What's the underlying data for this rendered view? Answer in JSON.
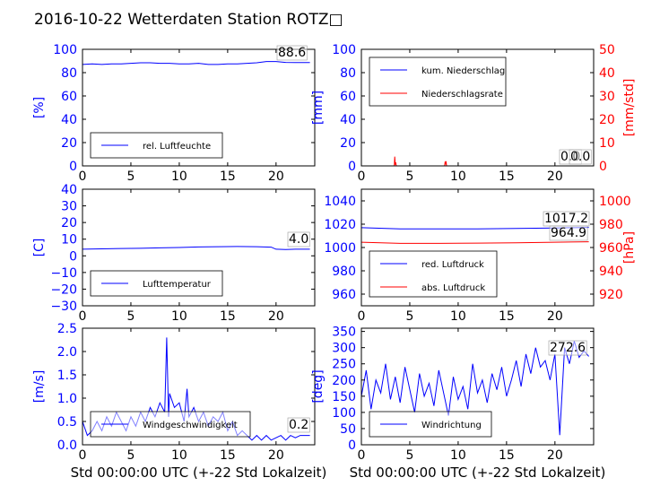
{
  "title": "2016-10-22 Wetterdaten Station ROTZ□",
  "colors": {
    "blue": "#0000ff",
    "red": "#ff0000",
    "black": "#000000"
  },
  "chart_data": [
    {
      "type": "line",
      "id": "humidity",
      "ylabel": "[%]",
      "xlabel": "",
      "xlim": [
        0,
        24
      ],
      "ylim": [
        0,
        100
      ],
      "xticks": [
        0,
        5,
        10,
        15,
        20
      ],
      "yticks": [
        0,
        20,
        40,
        60,
        80,
        100
      ],
      "legend": "lower-left",
      "series": [
        {
          "name": "rel. Luftfeuchte",
          "color": "#0000ff",
          "x": [
            0,
            1,
            2,
            3,
            4,
            5,
            6,
            7,
            8,
            9,
            10,
            11,
            12,
            13,
            14,
            15,
            16,
            17,
            18,
            19,
            20,
            21,
            22,
            23.5
          ],
          "y": [
            87,
            87.5,
            87,
            87.5,
            87.5,
            88,
            88.5,
            88.5,
            88,
            88,
            87.5,
            87.5,
            88,
            87,
            87,
            87.5,
            87.5,
            88,
            88.5,
            89.5,
            89.5,
            88.8,
            88.6,
            88.6
          ]
        }
      ],
      "annotations": [
        {
          "text": "88.6"
        }
      ]
    },
    {
      "type": "line",
      "id": "precipitation",
      "ylabel": "[mm]",
      "ylabel_right": "[mm/std]",
      "xlabel": "",
      "xlim": [
        0,
        24
      ],
      "ylim": [
        0,
        100
      ],
      "ylim_right": [
        0,
        50
      ],
      "xticks": [
        0,
        5,
        10,
        15,
        20
      ],
      "yticks": [
        0,
        20,
        40,
        60,
        80,
        100
      ],
      "yticks_right": [
        0,
        10,
        20,
        30,
        40,
        50
      ],
      "legend": "upper-left",
      "series": [
        {
          "name": "kum. Niederschlag",
          "color": "#0000ff",
          "axis": "left",
          "x": [
            0,
            24
          ],
          "y": [
            0,
            0
          ]
        },
        {
          "name": "Niederschlagsrate",
          "color": "#ff0000",
          "axis": "right",
          "x": [
            0,
            3.4,
            3.45,
            3.5,
            3.55,
            3.6,
            8.6,
            8.65,
            8.7,
            8.75,
            8.8,
            24
          ],
          "y": [
            0,
            0,
            4,
            0.5,
            1.5,
            0,
            0,
            1.5,
            1,
            2,
            0,
            0
          ]
        }
      ],
      "annotations": [
        {
          "text": "0.0"
        },
        {
          "text": "0.0"
        }
      ]
    },
    {
      "type": "line",
      "id": "temperature",
      "ylabel": "[C]",
      "xlabel": "",
      "xlim": [
        0,
        24
      ],
      "ylim": [
        -30,
        40
      ],
      "xticks": [
        0,
        5,
        10,
        15,
        20
      ],
      "yticks": [
        -30,
        -20,
        -10,
        0,
        10,
        20,
        30,
        40
      ],
      "legend": "lower-left",
      "series": [
        {
          "name": "Lufttemperatur",
          "color": "#0000ff",
          "x": [
            0,
            2,
            4,
            6,
            8,
            10,
            12,
            14,
            16,
            18,
            19.5,
            20,
            21,
            22,
            23.5
          ],
          "y": [
            4,
            4.2,
            4.4,
            4.5,
            4.8,
            5,
            5.3,
            5.5,
            5.6,
            5.5,
            5.2,
            4,
            3.8,
            4,
            4.0
          ]
        }
      ],
      "annotations": [
        {
          "text": "4.0"
        }
      ]
    },
    {
      "type": "line",
      "id": "pressure",
      "ylabel": "",
      "ylabel_right": "[hPa]",
      "xlabel": "",
      "xlim": [
        0,
        24
      ],
      "ylim": [
        950,
        1050
      ],
      "ylim_right": [
        910,
        1010
      ],
      "xticks": [
        0,
        5,
        10,
        15,
        20
      ],
      "yticks": [
        960,
        980,
        1000,
        1020,
        1040
      ],
      "yticks_right": [
        920,
        940,
        960,
        980,
        1000
      ],
      "legend": "lower-left",
      "series": [
        {
          "name": "red. Luftdruck",
          "color": "#0000ff",
          "axis": "left",
          "x": [
            0,
            4,
            8,
            12,
            16,
            20,
            23.5
          ],
          "y": [
            1017,
            1016,
            1016,
            1016,
            1016.3,
            1016.8,
            1017.2
          ]
        },
        {
          "name": "abs. Luftdruck",
          "color": "#ff0000",
          "axis": "right",
          "x": [
            0,
            4,
            8,
            12,
            16,
            20,
            23.5
          ],
          "y": [
            964.5,
            963.5,
            963.5,
            963.8,
            964,
            964.5,
            964.9
          ]
        }
      ],
      "annotations": [
        {
          "text": "1017.2"
        },
        {
          "text": "964.9"
        }
      ]
    },
    {
      "type": "line",
      "id": "windspeed",
      "ylabel": "[m/s]",
      "xlabel": "Std 00:00:00 UTC (+-22 Std Lokalzeit)",
      "xlim": [
        0,
        24
      ],
      "ylim": [
        0,
        2.5
      ],
      "xticks": [
        0,
        5,
        10,
        15,
        20
      ],
      "yticks": [
        0,
        0.5,
        1.0,
        1.5,
        2.0,
        2.5
      ],
      "legend": "lower-left",
      "series": [
        {
          "name": "Windgeschwindigkeit",
          "color": "#0000ff",
          "x": [
            0,
            0.5,
            1,
            1.5,
            2,
            2.5,
            3,
            3.5,
            4,
            4.5,
            5,
            5.5,
            6,
            6.5,
            7,
            7.5,
            8,
            8.5,
            8.7,
            8.9,
            9,
            9.5,
            10,
            10.5,
            10.8,
            11,
            11.5,
            12,
            12.5,
            13,
            13.5,
            14,
            14.5,
            15,
            15.5,
            16,
            16.5,
            17,
            17.5,
            18,
            18.5,
            19,
            19.5,
            20,
            20.5,
            21,
            21.5,
            22,
            22.5,
            23,
            23.5
          ],
          "y": [
            0.5,
            0.2,
            0.3,
            0.5,
            0.3,
            0.6,
            0.4,
            0.7,
            0.5,
            0.3,
            0.6,
            0.4,
            0.7,
            0.5,
            0.8,
            0.6,
            0.9,
            0.7,
            2.3,
            0.6,
            1.1,
            0.8,
            0.9,
            0.5,
            1.2,
            0.6,
            0.8,
            0.5,
            0.7,
            0.4,
            0.6,
            0.5,
            0.7,
            0.3,
            0.5,
            0.2,
            0.3,
            0.2,
            0.1,
            0.2,
            0.1,
            0.2,
            0.1,
            0.15,
            0.2,
            0.1,
            0.2,
            0.15,
            0.2,
            0.2,
            0.2
          ]
        }
      ],
      "annotations": [
        {
          "text": "0.2"
        }
      ]
    },
    {
      "type": "line",
      "id": "winddirection",
      "ylabel": "[deg]",
      "xlabel": "Std 00:00:00 UTC (+-22 Std Lokalzeit)",
      "xlim": [
        0,
        24
      ],
      "ylim": [
        0,
        360
      ],
      "xticks": [
        0,
        5,
        10,
        15,
        20
      ],
      "yticks": [
        0,
        50,
        100,
        150,
        200,
        250,
        300,
        350
      ],
      "legend": "lower-left",
      "series": [
        {
          "name": "Windrichtung",
          "color": "#0000ff",
          "x": [
            0,
            0.5,
            1,
            1.5,
            2,
            2.5,
            3,
            3.5,
            4,
            4.5,
            5,
            5.5,
            6,
            6.5,
            7,
            7.5,
            8,
            8.5,
            9,
            9.5,
            10,
            10.5,
            11,
            11.5,
            12,
            12.5,
            13,
            13.5,
            14,
            14.5,
            15,
            15.5,
            16,
            16.5,
            17,
            17.5,
            18,
            18.5,
            19,
            19.5,
            20,
            20.5,
            21,
            21.5,
            22,
            22.5,
            23,
            23.5
          ],
          "y": [
            150,
            230,
            110,
            200,
            160,
            250,
            140,
            210,
            130,
            240,
            170,
            100,
            220,
            150,
            190,
            120,
            230,
            160,
            90,
            210,
            140,
            180,
            110,
            250,
            160,
            200,
            130,
            220,
            170,
            240,
            150,
            200,
            260,
            180,
            280,
            220,
            300,
            240,
            260,
            200,
            280,
            30,
            300,
            250,
            320,
            270,
            290,
            273
          ]
        }
      ],
      "annotations": [
        {
          "text": "272.6"
        }
      ]
    }
  ]
}
